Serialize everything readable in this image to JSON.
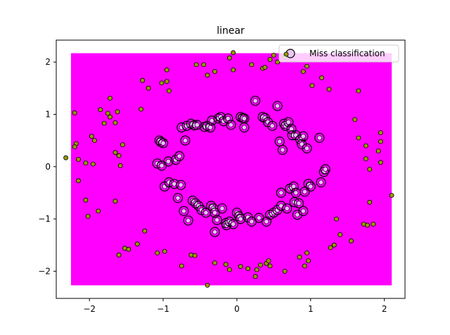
{
  "chart_data": {
    "type": "scatter",
    "title": "linear",
    "xlabel": "",
    "ylabel": "",
    "xlim": [
      -2.45,
      2.28
    ],
    "ylim": [
      -2.52,
      2.42
    ],
    "xticks": [
      -2,
      -1,
      0,
      1,
      2
    ],
    "xtick_labels": [
      "−2",
      "−1",
      "0",
      "1",
      "2"
    ],
    "yticks": [
      -2,
      -1,
      0,
      1,
      2
    ],
    "ytick_labels": [
      "−2",
      "−1",
      "0",
      "1",
      "2"
    ],
    "grid": false,
    "legend_position": "top-right",
    "legend": [
      "Miss classification"
    ],
    "background_region": {
      "x": [
        -2.25,
        2.1
      ],
      "y": [
        -2.27,
        2.17
      ],
      "color": "#ff00ff"
    },
    "colors": {
      "background": "#ff00ff",
      "outer_points": "#999900",
      "inner_points": "#e0c8f0",
      "miss_ring": "#7f007f"
    },
    "outer_points": [
      [
        -2.32,
        0.17
      ],
      [
        -2.2,
        1.03
      ],
      [
        -2.18,
        0.44
      ],
      [
        -2.15,
        0.14
      ],
      [
        -2.2,
        0.38
      ],
      [
        -2.15,
        -0.27
      ],
      [
        -2.05,
        0.07
      ],
      [
        -2.05,
        -0.64
      ],
      [
        -2.02,
        -0.95
      ],
      [
        -1.97,
        0.58
      ],
      [
        -1.95,
        0.05
      ],
      [
        -1.93,
        0.5
      ],
      [
        -1.88,
        -0.85
      ],
      [
        -1.85,
        1.09
      ],
      [
        -1.8,
        0.83
      ],
      [
        -1.75,
        1.02
      ],
      [
        -1.72,
        1.31
      ],
      [
        -1.72,
        0.95
      ],
      [
        -1.65,
        0.84
      ],
      [
        -1.65,
        -0.66
      ],
      [
        -1.62,
        1.05
      ],
      [
        -1.65,
        0.27
      ],
      [
        -1.6,
        0.21
      ],
      [
        -1.58,
        0.02
      ],
      [
        -1.55,
        0.42
      ],
      [
        -1.6,
        -1.69
      ],
      [
        -1.52,
        -1.56
      ],
      [
        -1.47,
        -1.58
      ],
      [
        -1.35,
        -1.48
      ],
      [
        -1.3,
        1.1
      ],
      [
        -1.28,
        1.65
      ],
      [
        -1.25,
        -1.23
      ],
      [
        -1.2,
        1.5
      ],
      [
        -1.08,
        -1.65
      ],
      [
        -1.02,
        1.6
      ],
      [
        -0.98,
        -1.62
      ],
      [
        -0.95,
        1.85
      ],
      [
        -0.95,
        1.63
      ],
      [
        -0.92,
        1.45
      ],
      [
        -0.75,
        -1.9
      ],
      [
        -0.62,
        -1.69
      ],
      [
        -0.57,
        -1.7
      ],
      [
        -0.55,
        1.95
      ],
      [
        -0.45,
        1.95
      ],
      [
        -0.4,
        1.75
      ],
      [
        -0.3,
        1.82
      ],
      [
        -0.3,
        -1.84
      ],
      [
        -0.4,
        -2.27
      ],
      [
        -0.15,
        -1.87
      ],
      [
        -0.1,
        2.08
      ],
      [
        -0.1,
        -1.97
      ],
      [
        -0.05,
        2.18
      ],
      [
        -0.05,
        1.85
      ],
      [
        0.05,
        -1.91
      ],
      [
        0.15,
        -1.95
      ],
      [
        0.2,
        1.95
      ],
      [
        0.25,
        -2.1
      ],
      [
        0.27,
        -1.97
      ],
      [
        0.32,
        -1.88
      ],
      [
        0.35,
        1.88
      ],
      [
        0.38,
        1.9
      ],
      [
        0.4,
        -1.85
      ],
      [
        0.43,
        -1.8
      ],
      [
        0.45,
        -1.9
      ],
      [
        0.45,
        2.05
      ],
      [
        0.5,
        2.13
      ],
      [
        0.55,
        2.0
      ],
      [
        0.65,
        2.1
      ],
      [
        0.65,
        -2.0
      ],
      [
        0.85,
        -1.73
      ],
      [
        0.9,
        1.82
      ],
      [
        0.92,
        -1.9
      ],
      [
        0.95,
        1.92
      ],
      [
        0.95,
        -1.65
      ],
      [
        0.97,
        -1.8
      ],
      [
        1.02,
        1.55
      ],
      [
        1.15,
        1.7
      ],
      [
        1.25,
        1.48
      ],
      [
        1.27,
        -1.55
      ],
      [
        1.32,
        -1.5
      ],
      [
        1.35,
        -1.0
      ],
      [
        1.4,
        -1.3
      ],
      [
        1.55,
        -1.42
      ],
      [
        1.6,
        0.9
      ],
      [
        1.65,
        1.45
      ],
      [
        1.65,
        0.55
      ],
      [
        1.72,
        -1.1
      ],
      [
        1.75,
        0.15
      ],
      [
        1.75,
        0.4
      ],
      [
        1.77,
        -1.12
      ],
      [
        1.8,
        -0.68
      ],
      [
        1.8,
        -0.05
      ],
      [
        1.85,
        -1.1
      ],
      [
        1.92,
        0.3
      ],
      [
        1.95,
        0.65
      ],
      [
        1.95,
        0.48
      ],
      [
        1.95,
        0.08
      ],
      [
        2.1,
        -0.55
      ]
    ],
    "inner_points": [
      [
        -1.08,
        0.06
      ],
      [
        -1.05,
        0.5
      ],
      [
        -1.03,
        0.47
      ],
      [
        -1.02,
        0.02
      ],
      [
        -1.0,
        0.45
      ],
      [
        -0.98,
        -0.38
      ],
      [
        -0.93,
        0.1
      ],
      [
        -0.92,
        -0.3
      ],
      [
        -0.85,
        -0.33
      ],
      [
        -0.83,
        0.13
      ],
      [
        -0.8,
        -0.6
      ],
      [
        -0.78,
        0.2
      ],
      [
        -0.76,
        -0.35
      ],
      [
        -0.75,
        0.75
      ],
      [
        -0.72,
        -0.85
      ],
      [
        -0.7,
        0.5
      ],
      [
        -0.68,
        0.78
      ],
      [
        -0.66,
        -1.03
      ],
      [
        -0.62,
        0.82
      ],
      [
        -0.6,
        -0.65
      ],
      [
        -0.58,
        0.79
      ],
      [
        -0.56,
        -0.7
      ],
      [
        -0.54,
        0.8
      ],
      [
        -0.52,
        -0.75
      ],
      [
        -0.48,
        -0.83
      ],
      [
        -0.44,
        0.76
      ],
      [
        -0.42,
        -0.88
      ],
      [
        -0.4,
        0.78
      ],
      [
        -0.36,
        0.75
      ],
      [
        -0.34,
        0.88
      ],
      [
        -0.35,
        -0.75
      ],
      [
        -0.32,
        -0.8
      ],
      [
        -0.3,
        -0.88
      ],
      [
        -0.3,
        -1.25
      ],
      [
        -0.27,
        -1.02
      ],
      [
        -0.25,
        0.92
      ],
      [
        -0.22,
        0.95
      ],
      [
        -0.2,
        -0.8
      ],
      [
        -0.18,
        0.87
      ],
      [
        -0.15,
        -1.08
      ],
      [
        -0.14,
        -1.12
      ],
      [
        -0.12,
        0.92
      ],
      [
        -0.1,
        -1.05
      ],
      [
        -0.08,
        0.8
      ],
      [
        -0.05,
        -1.1
      ],
      [
        0.0,
        -0.88
      ],
      [
        0.03,
        -0.95
      ],
      [
        0.05,
        0.95
      ],
      [
        0.05,
        -1.0
      ],
      [
        0.08,
        0.93
      ],
      [
        0.1,
        0.92
      ],
      [
        0.1,
        0.75
      ],
      [
        0.15,
        -0.97
      ],
      [
        0.2,
        -1.05
      ],
      [
        0.25,
        1.26
      ],
      [
        0.3,
        -0.98
      ],
      [
        0.35,
        0.95
      ],
      [
        0.38,
        0.93
      ],
      [
        0.4,
        -1.05
      ],
      [
        0.42,
        0.85
      ],
      [
        0.45,
        -0.92
      ],
      [
        0.48,
        0.78
      ],
      [
        0.5,
        -0.88
      ],
      [
        0.55,
        1.16
      ],
      [
        0.55,
        -0.83
      ],
      [
        0.58,
        0.48
      ],
      [
        0.6,
        -0.75
      ],
      [
        0.6,
        -0.5
      ],
      [
        0.62,
        0.32
      ],
      [
        0.64,
        0.82
      ],
      [
        0.66,
        0.78
      ],
      [
        0.68,
        -0.8
      ],
      [
        0.7,
        0.85
      ],
      [
        0.72,
        -0.42
      ],
      [
        0.74,
        0.72
      ],
      [
        0.75,
        0.6
      ],
      [
        0.77,
        -0.38
      ],
      [
        0.78,
        -0.68
      ],
      [
        0.8,
        0.6
      ],
      [
        0.8,
        -0.5
      ],
      [
        0.82,
        -0.92
      ],
      [
        0.84,
        -0.7
      ],
      [
        0.86,
        0.52
      ],
      [
        0.88,
        0.43
      ],
      [
        0.9,
        -0.85
      ],
      [
        0.9,
        0.58
      ],
      [
        0.92,
        -0.48
      ],
      [
        0.95,
        0.35
      ],
      [
        0.97,
        -0.33
      ],
      [
        1.0,
        -0.38
      ],
      [
        1.12,
        0.55
      ],
      [
        1.14,
        -0.3
      ],
      [
        1.18,
        -0.1
      ],
      [
        1.2,
        -0.05
      ]
    ]
  }
}
